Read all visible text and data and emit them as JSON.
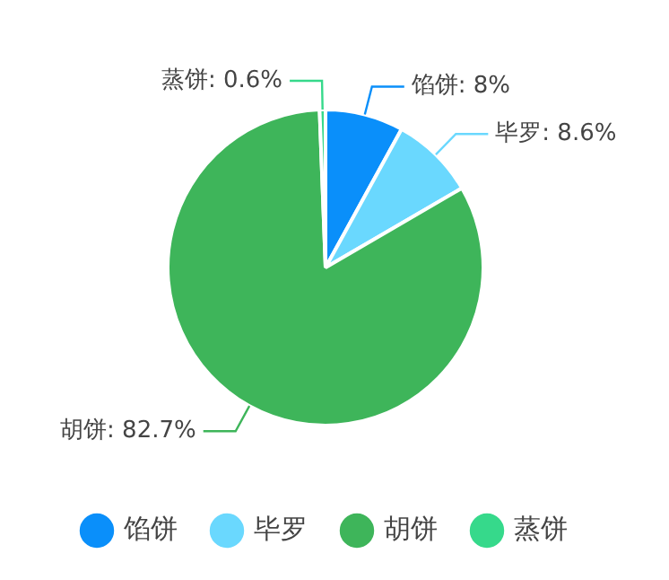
{
  "chart_data": {
    "type": "pie",
    "categories": [
      "馅饼",
      "毕罗",
      "胡饼",
      "蒸饼"
    ],
    "values": [
      8,
      8.6,
      82.7,
      0.6
    ],
    "colors": [
      "#0a8ffa",
      "#6ad8fe",
      "#3eb55a",
      "#36d98b"
    ],
    "value_labels": [
      "馅饼: 8%",
      "毕罗: 8.6%",
      "胡饼: 82.7%",
      "蒸饼: 0.6%"
    ],
    "legend": "bottom"
  }
}
